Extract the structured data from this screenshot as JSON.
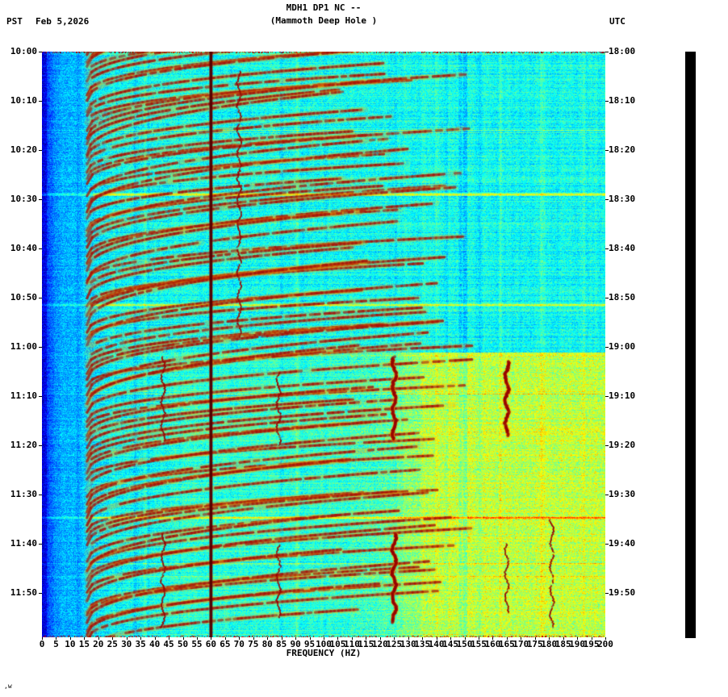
{
  "header": {
    "tz_left": "PST",
    "date": "Feb 5,2026",
    "title_line1": "MDH1 DP1 NC --",
    "title_line2": "(Mammoth Deep Hole )",
    "tz_right": "UTC"
  },
  "footer": {
    "note": ",w"
  },
  "colorbar": {
    "color": "#000000"
  },
  "chart_data": {
    "type": "heatmap",
    "title": "MDH1 DP1 NC -- (Mammoth Deep Hole ) spectrogram",
    "xlabel": "FREQUENCY (HZ)",
    "x_range_hz": [
      0,
      200
    ],
    "x_tick_step_hz": 5,
    "x_tick_labels": [
      "0",
      "5",
      "10",
      "15",
      "20",
      "25",
      "30",
      "35",
      "40",
      "45",
      "50",
      "55",
      "60",
      "65",
      "70",
      "75",
      "80",
      "85",
      "90",
      "95",
      "100",
      "105",
      "110",
      "115",
      "120",
      "125",
      "130",
      "135",
      "140",
      "145",
      "150",
      "155",
      "160",
      "165",
      "170",
      "175",
      "180",
      "185",
      "190",
      "195",
      "200"
    ],
    "left_axis_times_pst": [
      "10:00",
      "10:10",
      "10:20",
      "10:30",
      "10:40",
      "10:50",
      "11:00",
      "11:10",
      "11:20",
      "11:30",
      "11:40",
      "11:50"
    ],
    "right_axis_times_utc": [
      "18:00",
      "18:10",
      "18:20",
      "18:30",
      "18:40",
      "18:50",
      "19:00",
      "19:10",
      "19:20",
      "19:30",
      "19:40",
      "19:50"
    ],
    "time_span_minutes": 119,
    "render_seed": 20260205,
    "colormap": "jet-like (blue-cyan-yellow-red)",
    "features": {
      "mains_hum_line_hz": 60,
      "faint_dark_column_hz": 150,
      "event_start_minutes": [
        -4,
        4.5,
        13,
        21.5,
        30,
        38.5,
        47,
        55.5,
        64,
        72,
        80.5,
        89,
        97.5,
        106,
        114.5
      ],
      "harmonics_per_event": 6,
      "harmonic_spacing_minutes": 1.45,
      "arc_f_start_hz": 16,
      "arc_f_end_hz_min": 105,
      "arc_f_end_hz_max": 155,
      "arc_rise_minutes_min": 8,
      "arc_rise_minutes_max": 13,
      "narrowband_tremor": [
        {
          "hz": 70,
          "from_min": 4,
          "to_min": 58,
          "strong": false
        },
        {
          "hz": 43,
          "from_min": 62,
          "to_min": 79,
          "strong": false
        },
        {
          "hz": 84,
          "from_min": 65,
          "to_min": 80,
          "strong": false
        },
        {
          "hz": 125,
          "from_min": 62,
          "to_min": 79,
          "strong": true
        },
        {
          "hz": 165,
          "from_min": 63,
          "to_min": 78,
          "strong": true
        },
        {
          "hz": 43,
          "from_min": 98,
          "to_min": 117,
          "strong": false
        },
        {
          "hz": 84,
          "from_min": 100,
          "to_min": 115,
          "strong": false
        },
        {
          "hz": 125,
          "from_min": 98,
          "to_min": 116,
          "strong": true
        },
        {
          "hz": 165,
          "from_min": 100,
          "to_min": 114,
          "strong": false
        },
        {
          "hz": 181,
          "from_min": 95,
          "to_min": 117,
          "strong": false
        }
      ],
      "bright_rows_minutes": [
        28.8,
        51.3,
        94.6
      ],
      "yellow_region_after_minute": 61,
      "background_description": "cyan speckle noise; deep blue below ~20 Hz; yellow-green wash at high frequencies after 19:03 UTC; dark-red harmonic arc families repeating every ~8.5 min; solid 60 Hz mains line"
    },
    "palette": {
      "deep_blue": "#0000b0",
      "cyan": "#00ffff",
      "yellow": "#f0ff20",
      "event_red": "#a0140a",
      "mains_red": "#6e0000",
      "halo_orange": "#ffaa00"
    }
  }
}
